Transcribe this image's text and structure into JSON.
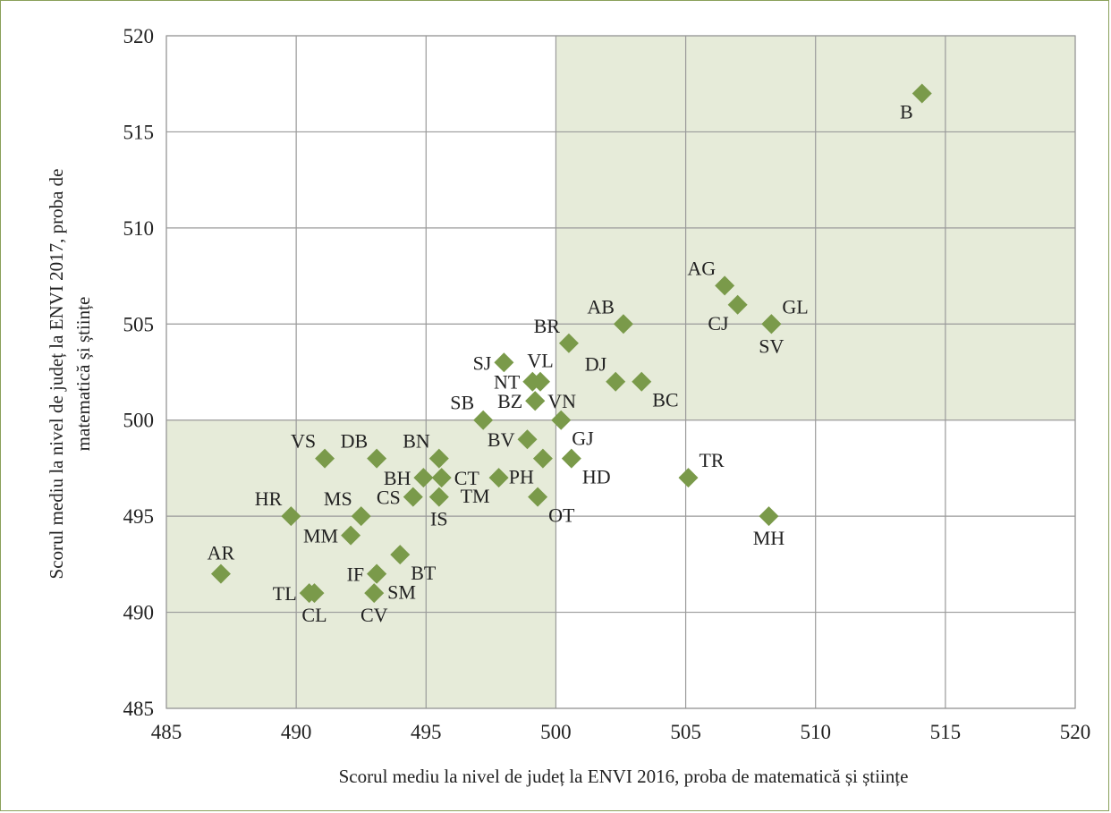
{
  "chart_data": {
    "type": "scatter",
    "xlabel": "Scorul mediu la nivel de județ la ENVI 2016, proba de matematică și științe",
    "ylabel_line1": "Scorul mediu la nivel de județ la ENVI 2017, proba de",
    "ylabel_line2": "matematică și științe",
    "xlim": [
      485,
      520
    ],
    "ylim": [
      485,
      520
    ],
    "xticks": [
      "485",
      "490",
      "495",
      "500",
      "505",
      "510",
      "515",
      "520"
    ],
    "yticks": [
      "485",
      "490",
      "495",
      "500",
      "505",
      "510",
      "515",
      "520"
    ],
    "grid": true,
    "legend": "none",
    "quadrant_fill_color": "#e6ebd9",
    "grid_color": "#9a9a9a",
    "marker_color": "#7a9a4a",
    "shaded_regions": [
      {
        "x": [
          500,
          520
        ],
        "y": [
          500,
          520
        ]
      },
      {
        "x": [
          485,
          500
        ],
        "y": [
          485,
          500
        ]
      }
    ],
    "points": [
      {
        "label": "B",
        "x": 514.1,
        "y": 517,
        "pos": "bl"
      },
      {
        "label": "AG",
        "x": 506.5,
        "y": 507,
        "pos": "tl"
      },
      {
        "label": "CJ",
        "x": 507.0,
        "y": 506,
        "pos": "bl"
      },
      {
        "label": "GL",
        "x": 508.3,
        "y": 505,
        "pos": "tr"
      },
      {
        "label": "SV",
        "x": 508.3,
        "y": 505,
        "pos": "b"
      },
      {
        "label": "AB",
        "x": 502.6,
        "y": 505,
        "pos": "tl"
      },
      {
        "label": "BR",
        "x": 500.5,
        "y": 504,
        "pos": "tl"
      },
      {
        "label": "DJ",
        "x": 502.3,
        "y": 502,
        "pos": "tl"
      },
      {
        "label": "BC",
        "x": 503.3,
        "y": 502,
        "pos": "br"
      },
      {
        "label": "SJ",
        "x": 498.0,
        "y": 503,
        "pos": "l"
      },
      {
        "label": "VL",
        "x": 499.4,
        "y": 502,
        "pos": "t"
      },
      {
        "label": "NT",
        "x": 499.1,
        "y": 502,
        "pos": "l"
      },
      {
        "label": "BZ",
        "x": 499.2,
        "y": 501,
        "pos": "l"
      },
      {
        "label": "VN",
        "x": 499.2,
        "y": 501,
        "pos": "r"
      },
      {
        "label": "GJ",
        "x": 500.2,
        "y": 500,
        "pos": "br"
      },
      {
        "label": "SB",
        "x": 497.2,
        "y": 500,
        "pos": "tl"
      },
      {
        "label": "BV",
        "x": 498.9,
        "y": 499,
        "pos": "l"
      },
      {
        "label": "PH",
        "x": 499.5,
        "y": 498,
        "pos": "bl"
      },
      {
        "label": "HD",
        "x": 500.6,
        "y": 498,
        "pos": "br"
      },
      {
        "label": "TM",
        "x": 497.8,
        "y": 497,
        "pos": "bl"
      },
      {
        "label": "OT",
        "x": 499.3,
        "y": 496,
        "pos": "br"
      },
      {
        "label": "BN",
        "x": 495.5,
        "y": 498,
        "pos": "tl"
      },
      {
        "label": "BH",
        "x": 494.9,
        "y": 497,
        "pos": "l"
      },
      {
        "label": "CT",
        "x": 495.6,
        "y": 497,
        "pos": "r"
      },
      {
        "label": "CS",
        "x": 494.5,
        "y": 496,
        "pos": "l"
      },
      {
        "label": "IS",
        "x": 495.5,
        "y": 496,
        "pos": "b"
      },
      {
        "label": "TR",
        "x": 505.1,
        "y": 497,
        "pos": "tr"
      },
      {
        "label": "MH",
        "x": 508.2,
        "y": 495,
        "pos": "b"
      },
      {
        "label": "VS",
        "x": 491.1,
        "y": 498,
        "pos": "tl"
      },
      {
        "label": "DB",
        "x": 493.1,
        "y": 498,
        "pos": "tl"
      },
      {
        "label": "HR",
        "x": 489.8,
        "y": 495,
        "pos": "tl"
      },
      {
        "label": "MS",
        "x": 492.5,
        "y": 495,
        "pos": "tl"
      },
      {
        "label": "MM",
        "x": 492.1,
        "y": 494,
        "pos": "l"
      },
      {
        "label": "BT",
        "x": 494.0,
        "y": 493,
        "pos": "br"
      },
      {
        "label": "IF",
        "x": 493.1,
        "y": 492,
        "pos": "l"
      },
      {
        "label": "SM",
        "x": 493.1,
        "y": 492,
        "pos": "br"
      },
      {
        "label": "AR",
        "x": 487.1,
        "y": 492,
        "pos": "t"
      },
      {
        "label": "TL",
        "x": 490.5,
        "y": 491,
        "pos": "l"
      },
      {
        "label": "CL",
        "x": 490.7,
        "y": 491,
        "pos": "b"
      },
      {
        "label": "CV",
        "x": 493.0,
        "y": 491,
        "pos": "b"
      }
    ]
  }
}
